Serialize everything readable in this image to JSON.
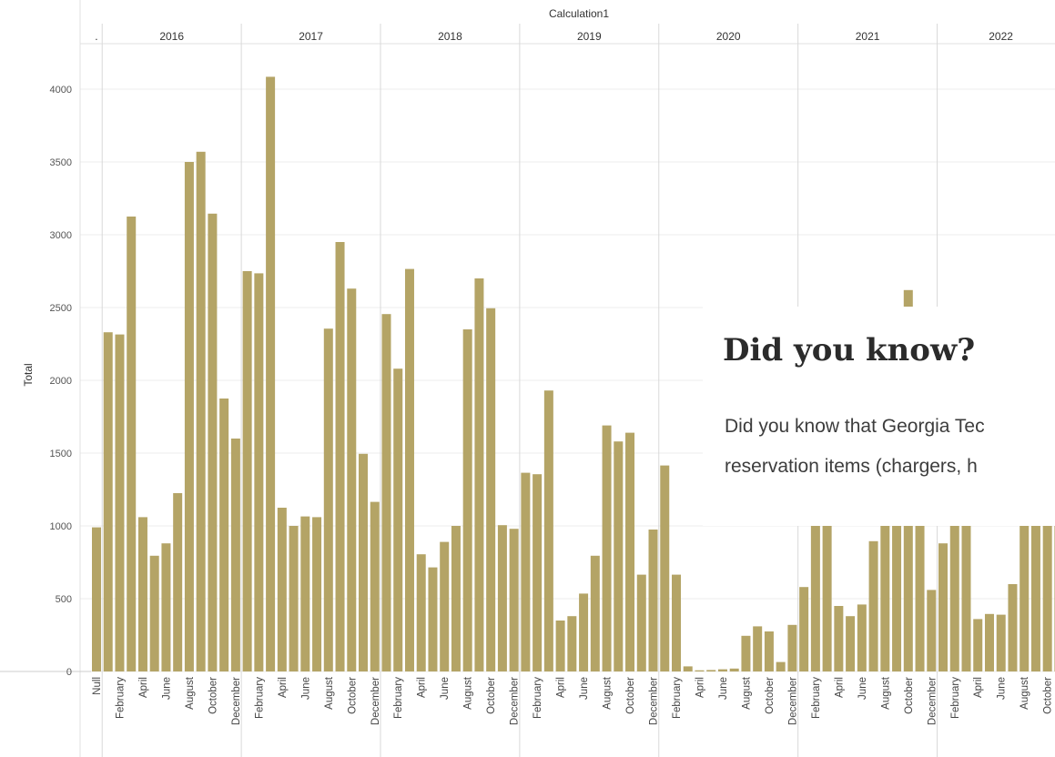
{
  "chart_data": {
    "type": "bar",
    "title": "Calculation1",
    "ylabel": "Total",
    "ylim": [
      0,
      4200
    ],
    "yticks": [
      0,
      500,
      1000,
      1500,
      2000,
      2500,
      3000,
      3500,
      4000
    ],
    "bar_color": "#b4a466",
    "groups": [
      {
        "label": ".",
        "categories": [
          "Null"
        ],
        "values": [
          990
        ]
      },
      {
        "label": "2016",
        "categories": [
          "",
          "February",
          "",
          "April",
          "",
          "June",
          "",
          "August",
          "",
          "October",
          "",
          "December"
        ],
        "values": [
          2330,
          2315,
          3125,
          1060,
          795,
          880,
          1225,
          3500,
          3570,
          3145,
          1875,
          1600
        ]
      },
      {
        "label": "2017",
        "categories": [
          "",
          "February",
          "",
          "April",
          "",
          "June",
          "",
          "August",
          "",
          "October",
          "",
          "December"
        ],
        "values": [
          2750,
          2735,
          4085,
          1125,
          1000,
          1065,
          1060,
          2355,
          2950,
          2630,
          1495,
          1165
        ]
      },
      {
        "label": "2018",
        "categories": [
          "",
          "February",
          "",
          "April",
          "",
          "June",
          "",
          "August",
          "",
          "October",
          "",
          "December"
        ],
        "values": [
          2455,
          2080,
          2765,
          805,
          715,
          890,
          1000,
          2350,
          2700,
          2495,
          1005,
          980
        ]
      },
      {
        "label": "2019",
        "categories": [
          "",
          "February",
          "",
          "April",
          "",
          "June",
          "",
          "August",
          "",
          "October",
          "",
          "December"
        ],
        "values": [
          1365,
          1355,
          1930,
          350,
          380,
          535,
          795,
          1690,
          1580,
          1640,
          665,
          975
        ]
      },
      {
        "label": "2020",
        "categories": [
          "",
          "February",
          "",
          "April",
          "",
          "June",
          "",
          "August",
          "",
          "October",
          "",
          "December"
        ],
        "values": [
          1415,
          665,
          35,
          8,
          10,
          15,
          20,
          245,
          310,
          275,
          65,
          320
        ]
      },
      {
        "label": "2021",
        "categories": [
          "",
          "February",
          "",
          "April",
          "",
          "June",
          "",
          "August",
          "",
          "October",
          "",
          "December"
        ],
        "values": [
          580,
          1000,
          1000,
          450,
          380,
          460,
          895,
          1000,
          1000,
          2620,
          1000,
          560
        ]
      },
      {
        "label": "2022",
        "categories": [
          "",
          "February",
          "",
          "April",
          "",
          "June",
          "",
          "August",
          "",
          "October",
          ""
        ],
        "values": [
          880,
          1000,
          1000,
          360,
          395,
          390,
          600,
          1000,
          1000,
          1000,
          1000
        ]
      }
    ]
  },
  "popup": {
    "title": "Did you know?",
    "line1": "Did you know that Georgia Tec",
    "line2": "reservation items  (chargers, h"
  }
}
